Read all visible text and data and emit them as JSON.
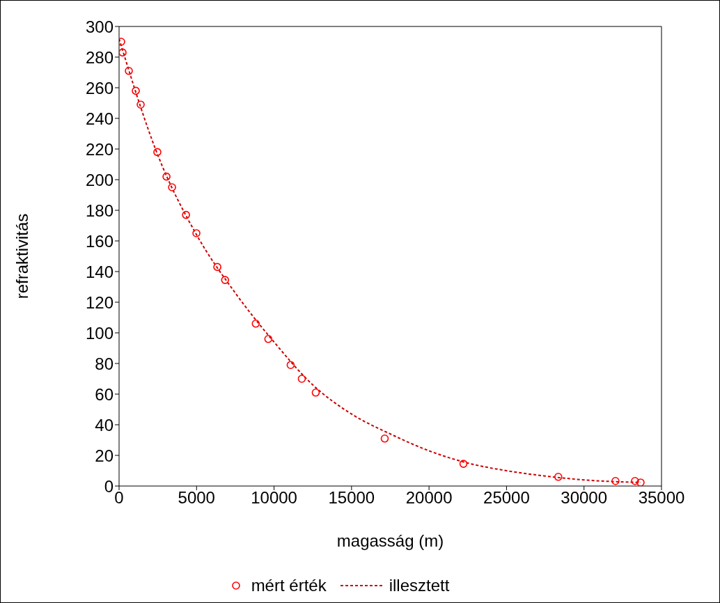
{
  "chart_data": {
    "type": "scatter",
    "xlabel": "magasság (m)",
    "ylabel": "refraktivitás",
    "xlim": [
      0,
      35000
    ],
    "xticks": [
      0,
      5000,
      10000,
      15000,
      20000,
      25000,
      30000,
      35000
    ],
    "ylim": [
      0,
      300
    ],
    "yticks": [
      0,
      20,
      40,
      60,
      80,
      100,
      120,
      140,
      160,
      180,
      200,
      220,
      240,
      260,
      280,
      300
    ],
    "legend": "bottom",
    "series": [
      {
        "name": "mért érték",
        "marker": "circle",
        "color": "#ff0000",
        "x": [
          135,
          225,
          630,
          1080,
          1395,
          2470,
          3060,
          3420,
          4320,
          4990,
          6340,
          6840,
          8820,
          9630,
          11070,
          11790,
          12690,
          17140,
          22220,
          28340,
          32030,
          33290,
          33650
        ],
        "values": [
          290,
          283,
          271,
          258,
          249,
          218,
          202,
          195,
          177,
          165,
          143,
          134.5,
          106,
          96,
          79,
          70,
          61,
          31,
          14.5,
          6,
          3.3,
          3.3,
          2.3
        ]
      },
      {
        "name": "illesztett",
        "type": "line",
        "marker": "none",
        "line_style": "dashed",
        "color": "#cc0000",
        "x": [
          0,
          2500,
          5000,
          7500,
          10000,
          12500,
          15000,
          17500,
          20000,
          22500,
          25000,
          27500,
          30000,
          33650
        ],
        "values": [
          292,
          216,
          164,
          126,
          94,
          66,
          47,
          34,
          23,
          15,
          10,
          6.5,
          4,
          2.3
        ]
      }
    ]
  }
}
